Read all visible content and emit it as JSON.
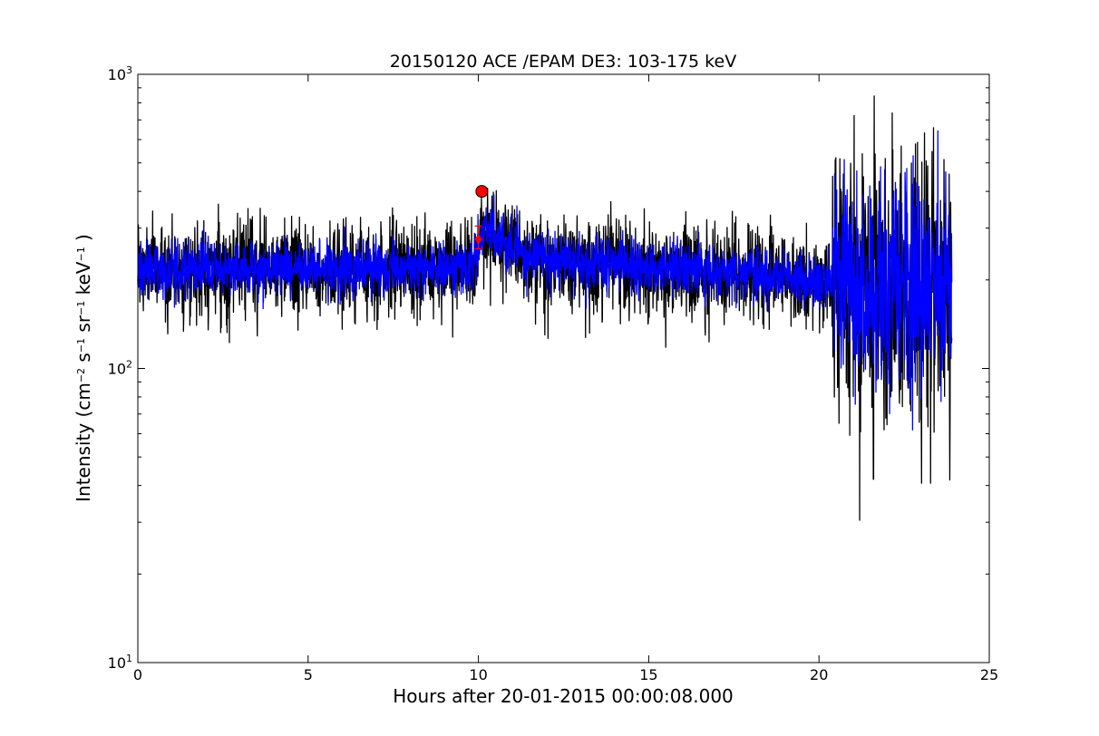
{
  "chart_data": {
    "type": "line",
    "title": "20150120 ACE /EPAM DE3: 103-175 keV",
    "xlabel": "Hours after 20-01-2015 00:00:08.000",
    "ylabel": {
      "prefix": "Intensity (cm",
      "exp1": "−2",
      "mid1": " s",
      "exp2": "−1",
      "mid2": " sr",
      "exp3": "−1",
      "mid3": " keV",
      "exp4": "−1",
      "suffix": " )"
    },
    "xlim": [
      0,
      25
    ],
    "ylim": [
      10,
      1000
    ],
    "yscale": "log",
    "grid": false,
    "x_ticks": [
      0,
      5,
      10,
      15,
      20,
      25
    ],
    "y_ticks": [
      10,
      100,
      1000
    ],
    "y_tick_labels": [
      {
        "base": "10",
        "exp": "1"
      },
      {
        "base": "10",
        "exp": "2"
      },
      {
        "base": "10",
        "exp": "3"
      }
    ],
    "x_range_data": [
      0.0,
      23.9
    ],
    "series": [
      {
        "color": "#000000",
        "baseline": [
          [
            0,
            218
          ],
          [
            9.9,
            220
          ],
          [
            10.1,
            300
          ],
          [
            10.6,
            270
          ],
          [
            12,
            235
          ],
          [
            15,
            220
          ],
          [
            18,
            210
          ],
          [
            20.3,
            195
          ],
          [
            24,
            190
          ]
        ],
        "noise_sigma": 0.08,
        "noise_sigma_late": 0.25,
        "late_start": 20.4,
        "spikes": [
          [
            10.15,
            340
          ],
          [
            20.4,
            450
          ],
          [
            20.45,
            80
          ],
          [
            21.6,
            42
          ],
          [
            23.0,
            67
          ],
          [
            23.85,
            70
          ],
          [
            4.7,
            135
          ],
          [
            8.2,
            140
          ],
          [
            15.5,
            118
          ],
          [
            11.95,
            130
          ]
        ]
      },
      {
        "color": "#0000ff",
        "baseline": [
          [
            0,
            218
          ],
          [
            9.9,
            220
          ],
          [
            10.1,
            300
          ],
          [
            10.6,
            270
          ],
          [
            12,
            235
          ],
          [
            15,
            220
          ],
          [
            18,
            210
          ],
          [
            20.3,
            195
          ],
          [
            24,
            190
          ]
        ],
        "noise_sigma": 0.045,
        "noise_sigma_late": 0.18,
        "late_start": 20.4,
        "spikes": [
          [
            10.2,
            330
          ],
          [
            20.45,
            115
          ],
          [
            23.25,
            325
          ]
        ]
      }
    ],
    "markers": [
      {
        "x": 10.1,
        "y": 400,
        "color": "#ff0000",
        "shape": "circle"
      },
      {
        "x": 10.0,
        "y": 275,
        "color": "#ff0000",
        "shape": "diamond",
        "error_low": 255,
        "error_high": 305
      }
    ]
  },
  "colors": {
    "background": "#ffffff",
    "axes": "#000000",
    "marker": "#ff0000"
  }
}
